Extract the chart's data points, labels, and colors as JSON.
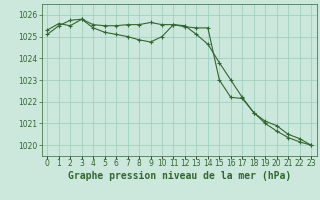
{
  "title": "Graphe pression niveau de la mer (hPa)",
  "background_color": "#cce8dc",
  "grid_color": "#99ccbb",
  "line_color": "#336633",
  "x_labels": [
    "0",
    "1",
    "2",
    "3",
    "4",
    "5",
    "6",
    "7",
    "8",
    "9",
    "10",
    "11",
    "12",
    "13",
    "14",
    "15",
    "16",
    "17",
    "18",
    "19",
    "20",
    "21",
    "22",
    "23"
  ],
  "series1": [
    1025.3,
    1025.6,
    1025.5,
    1025.8,
    1025.55,
    1025.5,
    1025.5,
    1025.55,
    1025.55,
    1025.65,
    1025.55,
    1025.55,
    1025.5,
    1025.1,
    1024.65,
    1023.8,
    1023.0,
    1022.2,
    1021.5,
    1021.0,
    1020.65,
    1020.35,
    1020.15,
    1020.0
  ],
  "series2": [
    1025.1,
    1025.5,
    1025.75,
    1025.8,
    1025.4,
    1025.2,
    1025.1,
    1025.0,
    1024.85,
    1024.75,
    1025.0,
    1025.55,
    1025.45,
    1025.4,
    1025.4,
    1023.0,
    1022.2,
    1022.15,
    1021.5,
    1021.1,
    1020.9,
    1020.5,
    1020.3,
    1020.0
  ],
  "ylim": [
    1019.5,
    1026.5
  ],
  "yticks": [
    1020,
    1021,
    1022,
    1023,
    1024,
    1025,
    1026
  ],
  "title_fontsize": 7,
  "tick_fontsize": 5.5
}
